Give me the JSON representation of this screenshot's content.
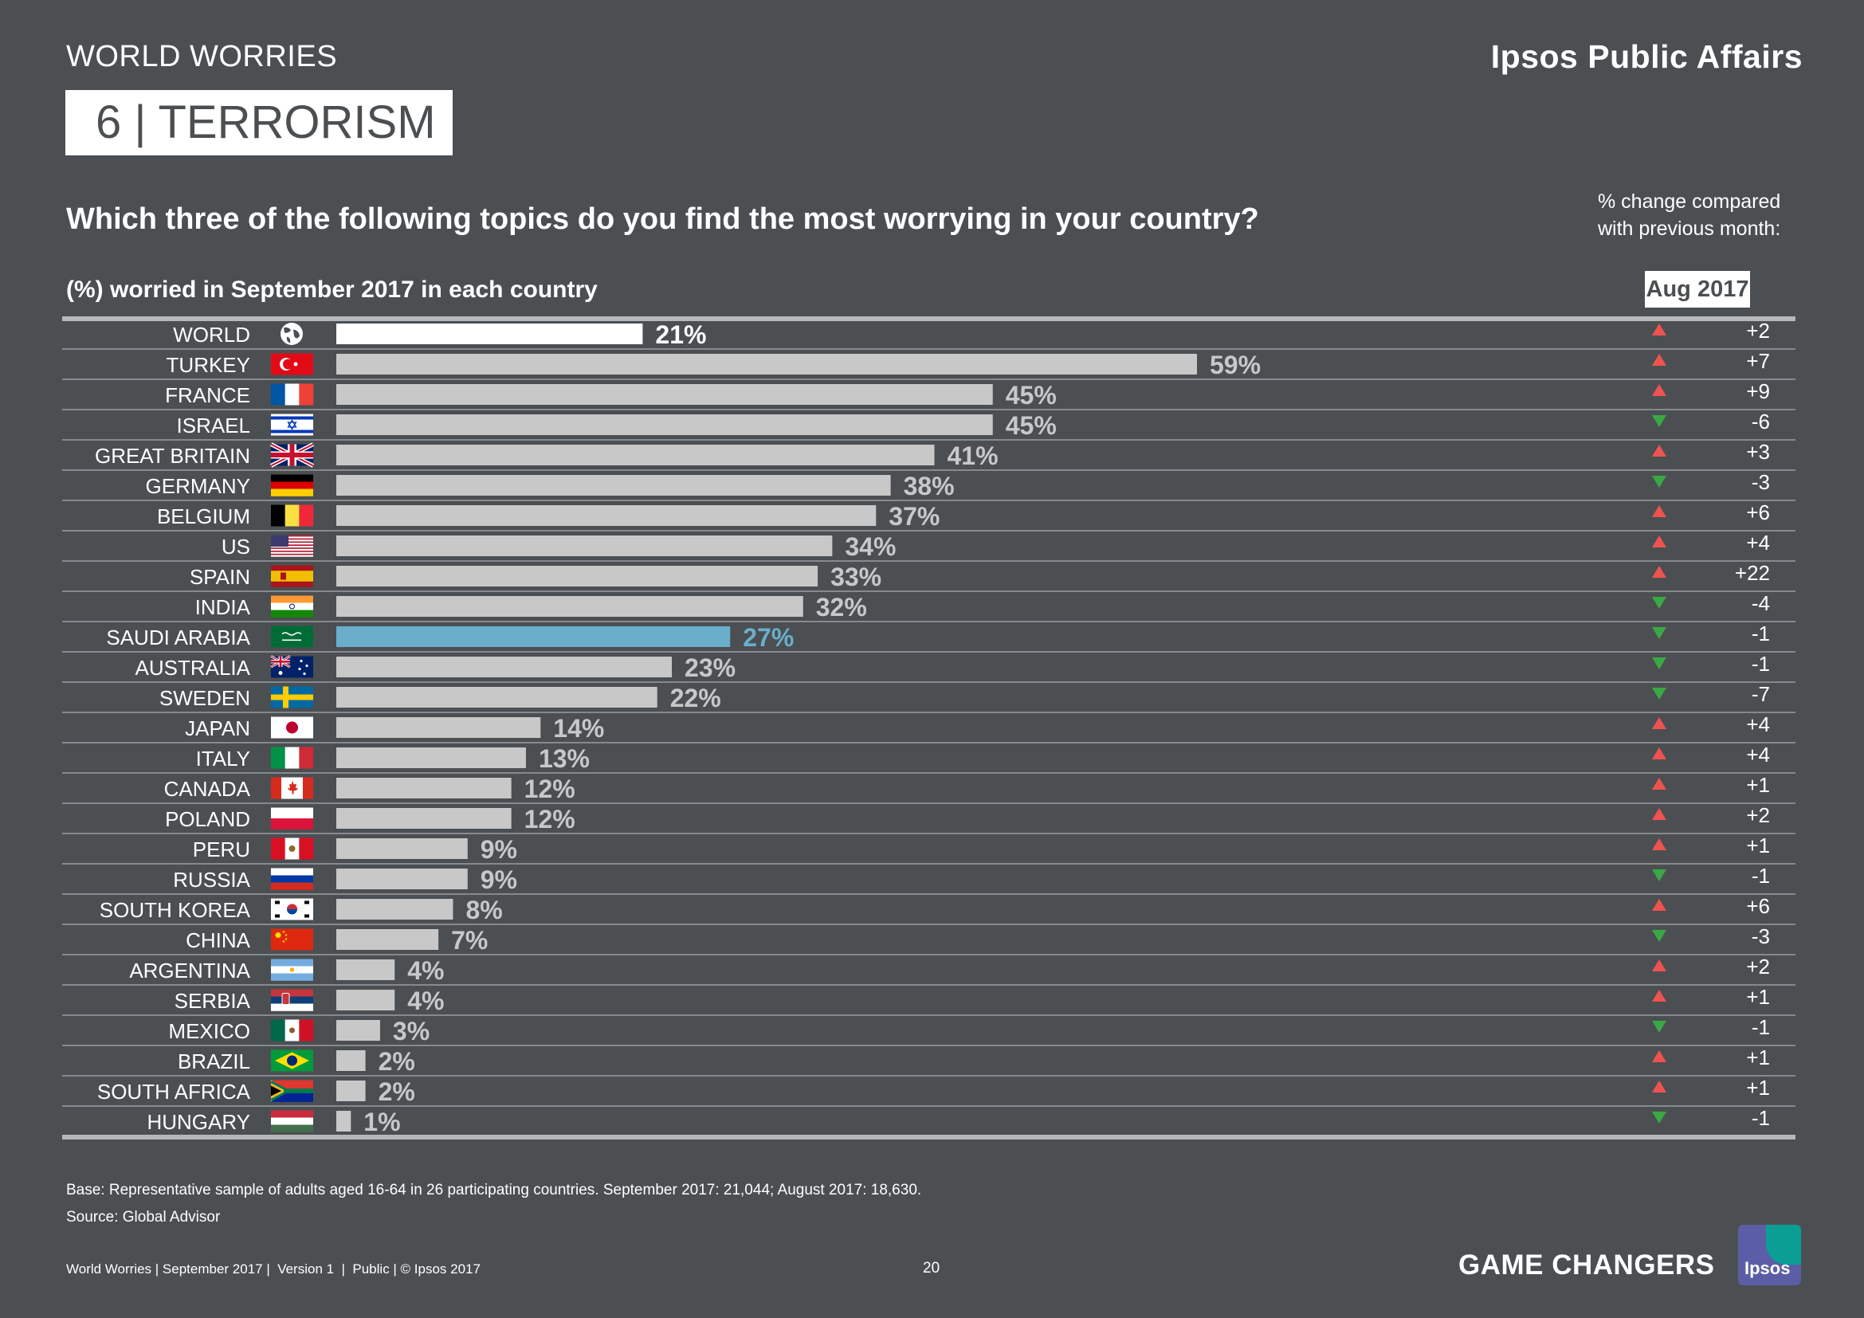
{
  "header": {
    "section_label": "WORLD WORRIES",
    "brand": "Ipsos Public Affairs",
    "title": "6  | TERRORISM",
    "question": "Which three of the following topics do you find the most worrying in your country?",
    "change_note_line1": "% change compared",
    "change_note_line2": "with previous month:",
    "subtitle": "(%) worried in September 2017 in each country",
    "comparison_month": "Aug 2017"
  },
  "colors": {
    "background": "#4b4f52",
    "bar_default": "#c8c8c8",
    "bar_world": "#ffffff",
    "bar_highlight": "#6aaecb",
    "label_default": "#c8c8c8",
    "label_highlight": "#6aaecb",
    "up_arrow": "#ef5350",
    "down_arrow": "#3aa844",
    "row_line": "#9a9ea1"
  },
  "chart_data": {
    "type": "bar",
    "orientation": "horizontal",
    "unit": "%",
    "xlim": [
      0,
      59
    ],
    "categories": [
      "WORLD",
      "TURKEY",
      "FRANCE",
      "ISRAEL",
      "GREAT BRITAIN",
      "GERMANY",
      "BELGIUM",
      "US",
      "SPAIN",
      "INDIA",
      "SAUDI ARABIA",
      "AUSTRALIA",
      "SWEDEN",
      "JAPAN",
      "ITALY",
      "CANADA",
      "POLAND",
      "PERU",
      "RUSSIA",
      "SOUTH KOREA",
      "CHINA",
      "ARGENTINA",
      "SERBIA",
      "MEXICO",
      "BRAZIL",
      "SOUTH AFRICA",
      "HUNGARY"
    ],
    "values": [
      21,
      59,
      45,
      45,
      41,
      38,
      37,
      34,
      33,
      32,
      27,
      23,
      22,
      14,
      13,
      12,
      12,
      9,
      9,
      8,
      7,
      4,
      4,
      3,
      2,
      2,
      1
    ],
    "value_labels": [
      "21%",
      "59%",
      "45%",
      "45%",
      "41%",
      "38%",
      "37%",
      "34%",
      "33%",
      "32%",
      "27%",
      "23%",
      "22%",
      "14%",
      "13%",
      "12%",
      "12%",
      "9%",
      "9%",
      "8%",
      "7%",
      "4%",
      "4%",
      "3%",
      "2%",
      "2%",
      "1%"
    ],
    "highlight": [
      "world",
      "default",
      "default",
      "default",
      "default",
      "default",
      "default",
      "default",
      "default",
      "default",
      "highlight",
      "default",
      "default",
      "default",
      "default",
      "default",
      "default",
      "default",
      "default",
      "default",
      "default",
      "default",
      "default",
      "default",
      "default",
      "default",
      "default"
    ],
    "flag_icons": [
      "globe-icon",
      "flag-turkey-icon",
      "flag-france-icon",
      "flag-israel-icon",
      "flag-great-britain-icon",
      "flag-germany-icon",
      "flag-belgium-icon",
      "flag-us-icon",
      "flag-spain-icon",
      "flag-india-icon",
      "flag-saudi-arabia-icon",
      "flag-australia-icon",
      "flag-sweden-icon",
      "flag-japan-icon",
      "flag-italy-icon",
      "flag-canada-icon",
      "flag-poland-icon",
      "flag-peru-icon",
      "flag-russia-icon",
      "flag-south-korea-icon",
      "flag-china-icon",
      "flag-argentina-icon",
      "flag-serbia-icon",
      "flag-mexico-icon",
      "flag-brazil-icon",
      "flag-south-africa-icon",
      "flag-hungary-icon"
    ],
    "change_values": [
      2,
      7,
      9,
      -6,
      3,
      -3,
      6,
      4,
      22,
      -4,
      -1,
      -1,
      -7,
      4,
      4,
      1,
      2,
      1,
      -1,
      6,
      -3,
      2,
      1,
      -1,
      1,
      1,
      -1
    ],
    "change_labels": [
      "+2",
      "+7",
      "+9",
      "-6",
      "+3",
      "-3",
      "+6",
      "+4",
      "+22",
      "-4",
      "-1",
      "-1",
      "-7",
      "+4",
      "+4",
      "+1",
      "+2",
      "+1",
      "-1",
      "+6",
      "-3",
      "+2",
      "+1",
      "-1",
      "+1",
      "+1",
      "-1"
    ],
    "change_direction": [
      "up",
      "up",
      "up",
      "down",
      "up",
      "down",
      "up",
      "up",
      "up",
      "down",
      "down",
      "down",
      "down",
      "up",
      "up",
      "up",
      "up",
      "up",
      "down",
      "up",
      "down",
      "up",
      "up",
      "down",
      "up",
      "up",
      "down"
    ]
  },
  "footer": {
    "base_note": "Base: Representative sample of adults aged 16-64 in 26 participating countries. September 2017: 21,044; August 2017: 18,630.",
    "source_note": "Source: Global Advisor",
    "left_text": "World Worries | September 2017 |  Version 1  |  Public | © Ipsos 2017",
    "page_number": "20",
    "tagline": "GAME CHANGERS",
    "logo_text": "Ipsos"
  }
}
